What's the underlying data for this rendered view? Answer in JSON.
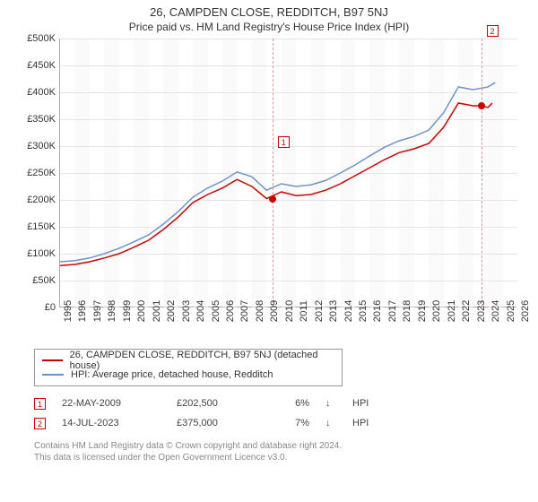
{
  "title": "26, CAMPDEN CLOSE, REDDITCH, B97 5NJ",
  "subtitle": "Price paid vs. HM Land Registry's House Price Index (HPI)",
  "chart": {
    "type": "line",
    "ylim": [
      0,
      500000
    ],
    "ytick_step": 50000,
    "ytick_labels": [
      "£0",
      "£50K",
      "£100K",
      "£150K",
      "£200K",
      "£250K",
      "£300K",
      "£350K",
      "£400K",
      "£450K",
      "£500K"
    ],
    "xlim": [
      1995,
      2026
    ],
    "xticks": [
      1995,
      1996,
      1997,
      1998,
      1999,
      2000,
      2001,
      2002,
      2003,
      2004,
      2005,
      2006,
      2007,
      2008,
      2009,
      2010,
      2011,
      2012,
      2013,
      2014,
      2015,
      2016,
      2017,
      2018,
      2019,
      2020,
      2021,
      2022,
      2023,
      2024,
      2025,
      2026
    ],
    "grid_color": "#e5e5e5",
    "alt_band_color": "#f5f5f5",
    "background_color": "#ffffff",
    "label_fontsize": 11,
    "series": [
      {
        "name": "26, CAMPDEN CLOSE, REDDITCH, B97 5NJ (detached house)",
        "color": "#cc0000",
        "line_width": 1.5,
        "points": [
          [
            1995,
            78000
          ],
          [
            1996,
            80000
          ],
          [
            1997,
            85000
          ],
          [
            1998,
            92000
          ],
          [
            1999,
            100000
          ],
          [
            2000,
            112000
          ],
          [
            2001,
            125000
          ],
          [
            2002,
            145000
          ],
          [
            2003,
            168000
          ],
          [
            2004,
            195000
          ],
          [
            2005,
            210000
          ],
          [
            2006,
            222000
          ],
          [
            2007,
            238000
          ],
          [
            2008,
            225000
          ],
          [
            2009,
            202500
          ],
          [
            2010,
            215000
          ],
          [
            2011,
            208000
          ],
          [
            2012,
            210000
          ],
          [
            2013,
            218000
          ],
          [
            2014,
            230000
          ],
          [
            2015,
            245000
          ],
          [
            2016,
            260000
          ],
          [
            2017,
            275000
          ],
          [
            2018,
            288000
          ],
          [
            2019,
            295000
          ],
          [
            2020,
            305000
          ],
          [
            2021,
            335000
          ],
          [
            2022,
            380000
          ],
          [
            2023,
            375000
          ],
          [
            2023.54,
            375000
          ],
          [
            2024,
            372000
          ],
          [
            2024.3,
            380000
          ]
        ]
      },
      {
        "name": "HPI: Average price, detached house, Redditch",
        "color": "#6f93c9",
        "line_width": 1.5,
        "points": [
          [
            1995,
            85000
          ],
          [
            1996,
            87000
          ],
          [
            1997,
            92000
          ],
          [
            1998,
            100000
          ],
          [
            1999,
            110000
          ],
          [
            2000,
            122000
          ],
          [
            2001,
            135000
          ],
          [
            2002,
            155000
          ],
          [
            2003,
            178000
          ],
          [
            2004,
            205000
          ],
          [
            2005,
            222000
          ],
          [
            2006,
            235000
          ],
          [
            2007,
            252000
          ],
          [
            2008,
            243000
          ],
          [
            2009,
            218000
          ],
          [
            2010,
            230000
          ],
          [
            2011,
            225000
          ],
          [
            2012,
            228000
          ],
          [
            2013,
            236000
          ],
          [
            2014,
            250000
          ],
          [
            2015,
            265000
          ],
          [
            2016,
            282000
          ],
          [
            2017,
            298000
          ],
          [
            2018,
            310000
          ],
          [
            2019,
            318000
          ],
          [
            2020,
            330000
          ],
          [
            2021,
            362000
          ],
          [
            2022,
            410000
          ],
          [
            2023,
            405000
          ],
          [
            2024,
            410000
          ],
          [
            2024.5,
            418000
          ]
        ]
      }
    ],
    "sale_markers": [
      {
        "id": "1",
        "x": 2009.39,
        "y": 202500,
        "label_y_offset": -70
      },
      {
        "id": "2",
        "x": 2023.54,
        "y": 375000,
        "label_y_offset": -90
      }
    ]
  },
  "legend": {
    "rows": [
      {
        "color": "#cc0000",
        "label": "26, CAMPDEN CLOSE, REDDITCH, B97 5NJ (detached house)"
      },
      {
        "color": "#6f93c9",
        "label": "HPI: Average price, detached house, Redditch"
      }
    ]
  },
  "sales": [
    {
      "id": "1",
      "date": "22-MAY-2009",
      "price": "£202,500",
      "pct": "6%",
      "arrow": "↓",
      "hpi": "HPI"
    },
    {
      "id": "2",
      "date": "14-JUL-2023",
      "price": "£375,000",
      "pct": "7%",
      "arrow": "↓",
      "hpi": "HPI"
    }
  ],
  "footer": {
    "line1": "Contains HM Land Registry data © Crown copyright and database right 2024.",
    "line2": "This data is licensed under the Open Government Licence v3.0."
  }
}
